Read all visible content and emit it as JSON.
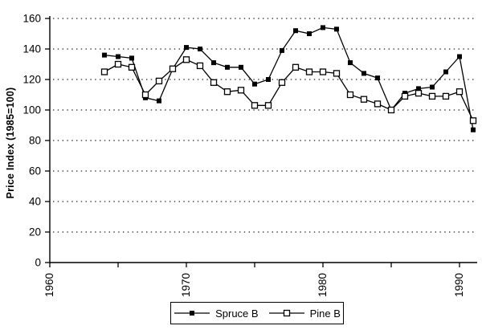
{
  "figure": {
    "background": "#ffffff"
  },
  "chart_data": {
    "type": "line",
    "title": "",
    "xlabel": "",
    "ylabel": "Price Index (1985=100)",
    "x": [
      1964,
      1965,
      1966,
      1967,
      1968,
      1969,
      1970,
      1971,
      1972,
      1973,
      1974,
      1975,
      1976,
      1977,
      1978,
      1979,
      1980,
      1981,
      1982,
      1983,
      1984,
      1985,
      1986,
      1987,
      1988,
      1989,
      1990,
      1991
    ],
    "series": [
      {
        "name": "Spruce B",
        "marker": "filled-square",
        "color": "#000000",
        "values": [
          136,
          135,
          134,
          108,
          106,
          127,
          141,
          140,
          131,
          128,
          128,
          117,
          120,
          139,
          152,
          150,
          154,
          153,
          131,
          124,
          121,
          100,
          111,
          114,
          115,
          125,
          135,
          87
        ]
      },
      {
        "name": "Pine B",
        "marker": "open-square",
        "color": "#000000",
        "values": [
          125,
          130,
          128,
          110,
          119,
          127,
          133,
          129,
          118,
          112,
          113,
          103,
          103,
          118,
          128,
          125,
          125,
          124,
          110,
          107,
          104,
          100,
          109,
          111,
          109,
          109,
          112,
          93
        ]
      }
    ],
    "x_axis": {
      "min": 1960,
      "max": 1992,
      "ticks": [
        1960,
        1965,
        1970,
        1975,
        1980,
        1985,
        1990
      ],
      "labeled_ticks": [
        1960,
        1970,
        1980,
        1990
      ]
    },
    "y_axis": {
      "min": 0,
      "max": 160,
      "ticks": [
        0,
        20,
        40,
        60,
        80,
        100,
        120,
        140,
        160
      ]
    },
    "grid": "horizontal-dotted",
    "gridline_color": "#222222",
    "legend_position": "bottom-center"
  }
}
